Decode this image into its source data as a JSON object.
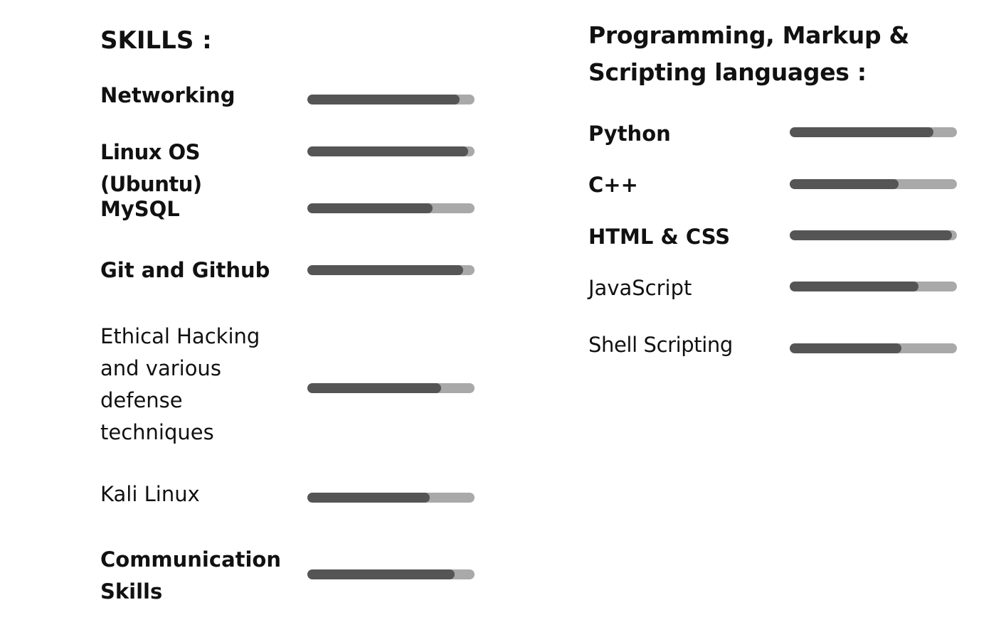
{
  "skills": {
    "heading": "SKILLS :",
    "items": [
      {
        "label": "Networking",
        "level": 0.91,
        "bold": true
      },
      {
        "label": "Linux OS (Ubuntu)",
        "level": 0.96,
        "bold": true
      },
      {
        "label": "MySQL",
        "level": 0.75,
        "bold": true
      },
      {
        "label": "Git and Github",
        "level": 0.93,
        "bold": true
      },
      {
        "label": "Ethical Hacking and various defense techniques",
        "level": 0.8,
        "bold": false
      },
      {
        "label": "Kali Linux",
        "level": 0.73,
        "bold": false
      },
      {
        "label": "Communication Skills",
        "level": 0.88,
        "bold": true
      }
    ]
  },
  "languages": {
    "heading": "Programming, Markup  & Scripting languages :",
    "items": [
      {
        "label": "Python",
        "level": 0.86,
        "bold": true
      },
      {
        "label": "C++",
        "level": 0.65,
        "bold": true
      },
      {
        "label": "HTML & CSS",
        "level": 0.97,
        "bold": true
      },
      {
        "label": "JavaScript",
        "level": 0.77,
        "bold": false
      },
      {
        "label": "Shell Scripting",
        "level": 0.67,
        "bold": false
      }
    ]
  },
  "colors": {
    "bar_fill": "#555555",
    "bar_track": "#a9a9a9",
    "text": "#111111"
  }
}
